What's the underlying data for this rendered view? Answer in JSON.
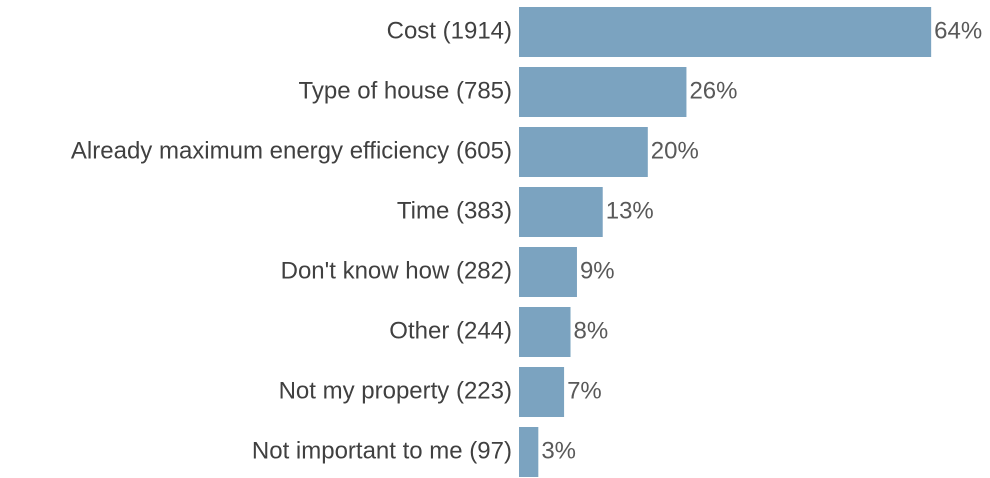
{
  "chart_data": {
    "type": "bar",
    "orientation": "horizontal",
    "categories": [
      "Cost (1914)",
      "Type of house (785)",
      "Already maximum energy efficiency (605)",
      "Time (383)",
      "Don't know how (282)",
      "Other (244)",
      "Not my property (223)",
      "Not important to me (97)"
    ],
    "values": [
      64,
      26,
      20,
      13,
      9,
      8,
      7,
      3
    ],
    "value_labels": [
      "64%",
      "26%",
      "20%",
      "13%",
      "9%",
      "8%",
      "7%",
      "3%"
    ],
    "color": "#7ba3c0"
  }
}
